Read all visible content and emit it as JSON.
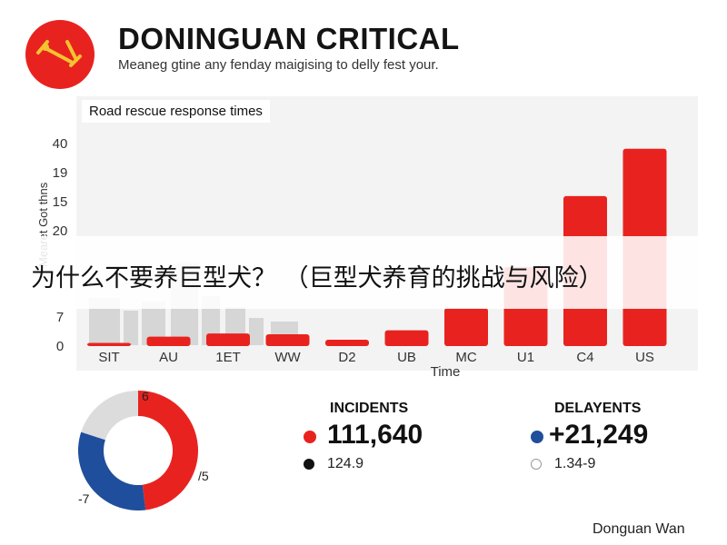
{
  "header": {
    "logo_name": "rescue-logo-icon",
    "title": "DONINGUAN CRITICAL",
    "subtitle": "Meaneg gtine any fenday maigising to delly fest your."
  },
  "chart_data": {
    "type": "bar",
    "title": "Road rescue response times",
    "xlabel": "Time",
    "ylabel": "Mearet Got thns",
    "categories": [
      "SIT",
      "AU",
      "1ET",
      "WW",
      "D2",
      "UB",
      "MC",
      "U1",
      "C4",
      "US"
    ],
    "values": [
      0.4,
      1.2,
      1.6,
      1.5,
      0.8,
      2.0,
      4.8,
      10,
      19,
      25
    ],
    "y_ticks": [
      "0",
      "7",
      "",
      "20",
      "15",
      "19",
      "40"
    ],
    "ylim": [
      0,
      26
    ],
    "color": "#e8231f",
    "grid": false
  },
  "overlay": {
    "text": "为什么不要养巨型犬？ （巨型犬养育的挑战与风险）"
  },
  "donut": {
    "segments": [
      {
        "value": 48,
        "color": "#e8231f"
      },
      {
        "value": 32,
        "color": "#1f4e9c"
      },
      {
        "value": 20,
        "color": "#dcdcdc"
      }
    ],
    "labels": {
      "top": "6",
      "right": "/5",
      "bottom_left": "-7"
    }
  },
  "stats": [
    {
      "heading": "INCIDENTS",
      "value": "111,640",
      "value_dot_color": "#e8231f",
      "sub": "124.9",
      "sub_dot_color": "#111111"
    },
    {
      "heading": "DELAYENTS",
      "value": "+21,249",
      "value_dot_color": "#1f4e9c",
      "sub": "1.34-9",
      "sub_dot_color": "#ffffff"
    }
  ],
  "footer": {
    "text": "Donguan Wan"
  }
}
